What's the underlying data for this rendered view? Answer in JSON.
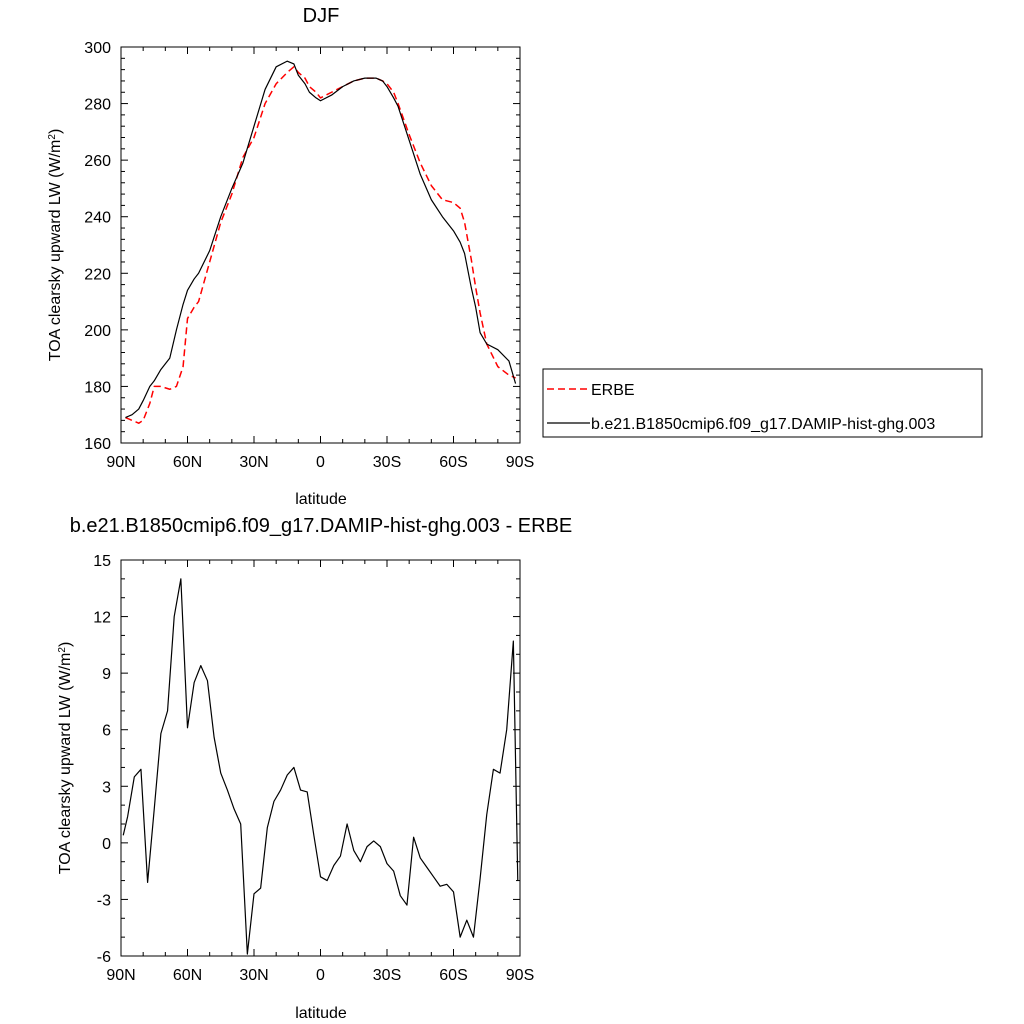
{
  "chart_data": [
    {
      "type": "line",
      "title": "DJF",
      "xlabel": "latitude",
      "ylabel": "TOA clearsky upward LW (W/m",
      "ylabel_sup": "2",
      "ylabel_close": ")",
      "xlim": [
        -90,
        90
      ],
      "ylim": [
        160,
        300
      ],
      "xticks": [
        {
          "value": -90,
          "label": "90N"
        },
        {
          "value": -60,
          "label": "60N"
        },
        {
          "value": -30,
          "label": "30N"
        },
        {
          "value": 0,
          "label": "0"
        },
        {
          "value": 30,
          "label": "30S"
        },
        {
          "value": 60,
          "label": "60S"
        },
        {
          "value": 90,
          "label": "90S"
        }
      ],
      "yticks": [
        160,
        180,
        200,
        220,
        240,
        260,
        280,
        300
      ],
      "legend_position": "right",
      "series": [
        {
          "name": "ERBE",
          "color": "#ff0000",
          "dash": "dashed",
          "x": [
            -88,
            -85,
            -82,
            -80,
            -77,
            -75,
            -72,
            -68,
            -65,
            -62,
            -60,
            -57,
            -55,
            -50,
            -45,
            -40,
            -35,
            -30,
            -25,
            -20,
            -15,
            -12,
            -10,
            -7,
            -5,
            -2,
            0,
            5,
            10,
            15,
            20,
            25,
            28,
            30,
            33,
            35,
            40,
            45,
            50,
            55,
            60,
            63,
            65,
            68,
            70,
            72,
            75,
            80,
            85,
            88
          ],
          "y": [
            169,
            168,
            167,
            168,
            174,
            180,
            180,
            179,
            180,
            187,
            204,
            208,
            210,
            224,
            238,
            248,
            261,
            268,
            280,
            287,
            291,
            293,
            291,
            289,
            286,
            284,
            282,
            284,
            286,
            288,
            289,
            289,
            288,
            287,
            284,
            280,
            269,
            259,
            251,
            246,
            245,
            243,
            238,
            225,
            215,
            206,
            195,
            187,
            184,
            183
          ]
        },
        {
          "name": "b.e21.B1850cmip6.f09_g17.DAMIP-hist-ghg.003",
          "color": "#000000",
          "dash": "solid",
          "x": [
            -88,
            -85,
            -82,
            -80,
            -77,
            -75,
            -72,
            -68,
            -65,
            -62,
            -60,
            -57,
            -55,
            -50,
            -45,
            -40,
            -35,
            -30,
            -25,
            -20,
            -15,
            -12,
            -10,
            -7,
            -5,
            -2,
            0,
            5,
            10,
            15,
            20,
            25,
            28,
            30,
            33,
            35,
            40,
            45,
            50,
            55,
            60,
            63,
            65,
            68,
            70,
            72,
            75,
            80,
            85,
            88
          ],
          "y": [
            169,
            170,
            172,
            175,
            180,
            182,
            186,
            190,
            200,
            209,
            214,
            218,
            220,
            228,
            240,
            250,
            259,
            272,
            285,
            293,
            295,
            294,
            290,
            287,
            284,
            282,
            281,
            283,
            286,
            288,
            289,
            289,
            288,
            286,
            282,
            279,
            267,
            255,
            246,
            240,
            235,
            231,
            227,
            215,
            208,
            199,
            195,
            193,
            189,
            181
          ]
        }
      ]
    },
    {
      "type": "line",
      "title": "b.e21.B1850cmip6.f09_g17.DAMIP-hist-ghg.003 - ERBE",
      "xlabel": "latitude",
      "ylabel": "TOA clearsky upward LW (W/m",
      "ylabel_sup": "2",
      "ylabel_close": ")",
      "xlim": [
        -90,
        90
      ],
      "ylim": [
        -6,
        15
      ],
      "xticks": [
        {
          "value": -90,
          "label": "90N"
        },
        {
          "value": -60,
          "label": "60N"
        },
        {
          "value": -30,
          "label": "30N"
        },
        {
          "value": 0,
          "label": "0"
        },
        {
          "value": 30,
          "label": "30S"
        },
        {
          "value": 60,
          "label": "60S"
        },
        {
          "value": 90,
          "label": "90S"
        }
      ],
      "yticks": [
        -6,
        -3,
        0,
        3,
        6,
        9,
        12,
        15
      ],
      "series": [
        {
          "name": "",
          "color": "#000000",
          "dash": "solid",
          "x": [
            -89,
            -87,
            -84,
            -81,
            -78,
            -75,
            -72,
            -69,
            -66,
            -63,
            -60,
            -57,
            -54,
            -51,
            -48,
            -45,
            -42,
            -39,
            -36,
            -33,
            -30,
            -27,
            -24,
            -21,
            -18,
            -15,
            -12,
            -9,
            -6,
            -3,
            0,
            3,
            6,
            9,
            12,
            15,
            18,
            21,
            24,
            27,
            30,
            33,
            36,
            39,
            42,
            45,
            48,
            51,
            54,
            57,
            60,
            63,
            66,
            69,
            72,
            75,
            78,
            81,
            84,
            87,
            89
          ],
          "y": [
            0.4,
            1.4,
            3.5,
            3.9,
            -2.1,
            1.8,
            5.8,
            7.0,
            12.0,
            14.0,
            6.1,
            8.5,
            9.4,
            8.6,
            5.6,
            3.7,
            2.8,
            1.8,
            1.0,
            -5.9,
            -2.7,
            -2.4,
            0.8,
            2.2,
            2.8,
            3.6,
            4.0,
            2.8,
            2.7,
            0.4,
            -1.8,
            -2.0,
            -1.2,
            -0.7,
            1.0,
            -0.4,
            -1.0,
            -0.2,
            0.1,
            -0.2,
            -1.1,
            -1.5,
            -2.8,
            -3.3,
            0.3,
            -0.8,
            -1.3,
            -1.8,
            -2.3,
            -2.2,
            -2.6,
            -5.0,
            -4.1,
            -5.0,
            -1.9,
            1.5,
            3.9,
            3.7,
            6.0,
            10.7,
            -2.0
          ]
        }
      ]
    }
  ]
}
